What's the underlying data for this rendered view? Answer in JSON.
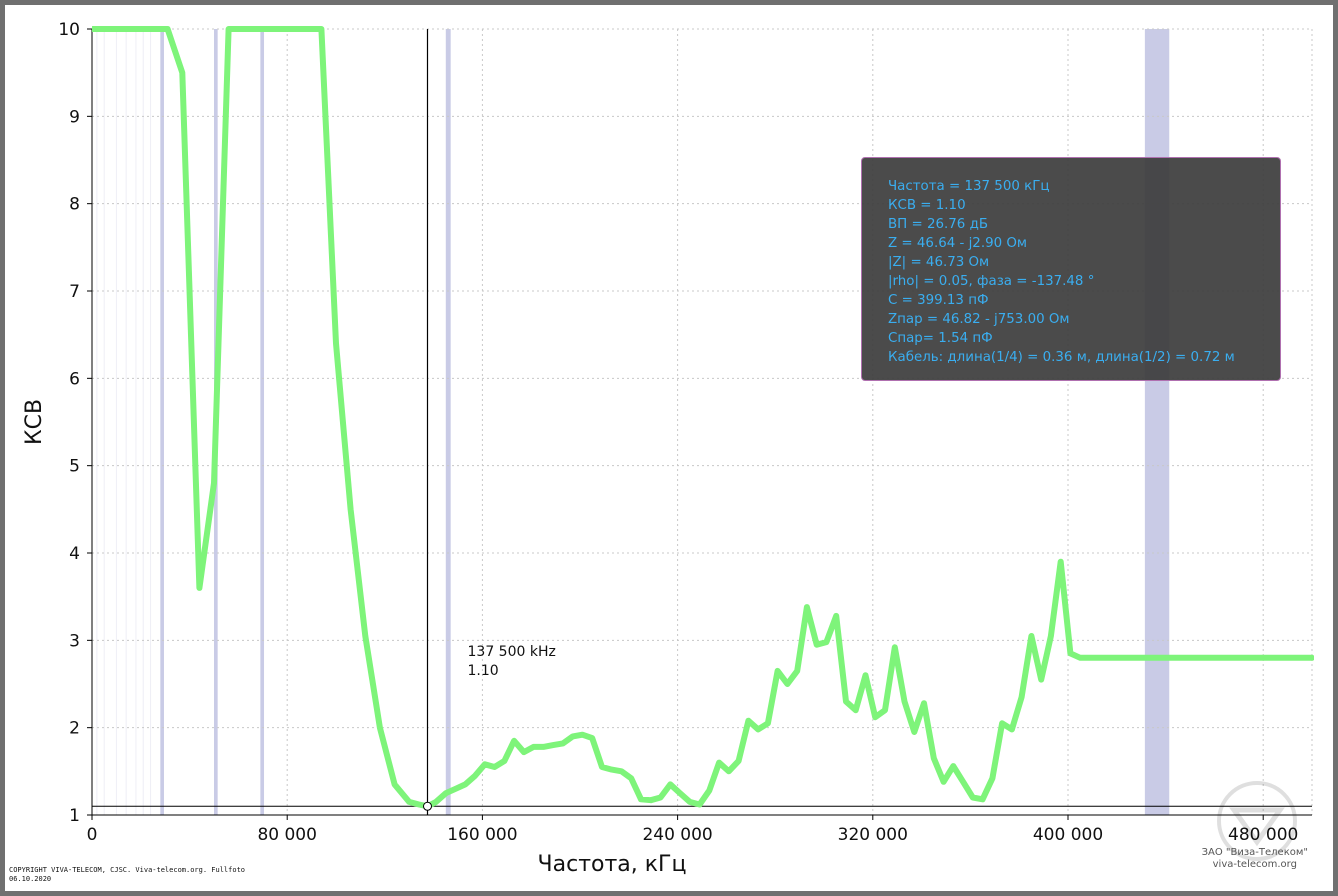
{
  "chart_data": {
    "type": "line",
    "xlabel": "Частота, кГц",
    "ylabel": "КСВ",
    "xlim": [
      0,
      500000
    ],
    "ylim": [
      1,
      10
    ],
    "x_ticks": [
      0,
      80000,
      160000,
      240000,
      320000,
      400000,
      480000
    ],
    "x_tick_labels": [
      "0",
      "80 000",
      "160 000",
      "240 000",
      "320 000",
      "400 000",
      "480 000"
    ],
    "y_ticks": [
      1,
      2,
      3,
      4,
      5,
      6,
      7,
      8,
      9,
      10
    ],
    "y_tick_labels": [
      "1",
      "2",
      "3",
      "4",
      "5",
      "6",
      "7",
      "8",
      "9",
      "10"
    ],
    "grid": true,
    "colors": {
      "series": "#7ef47a",
      "band": "#c9cbe6",
      "cursor": "#000000"
    },
    "bands": [
      {
        "x0": 28000,
        "x1": 29500
      },
      {
        "x0": 50000,
        "x1": 51500
      },
      {
        "x0": 69000,
        "x1": 70500
      },
      {
        "x0": 145000,
        "x1": 147000
      },
      {
        "x0": 431500,
        "x1": 441500
      }
    ],
    "minor_lines": [
      2000,
      5000,
      10000,
      14000,
      18000,
      21000,
      24000
    ],
    "series": [
      {
        "x": [
          0,
          31000,
          37000,
          44000,
          50000,
          56000,
          94000,
          100000,
          106000,
          112000,
          118000,
          124000,
          130000,
          134000,
          137500,
          141000,
          145000,
          149000,
          153000,
          157000,
          161000,
          165000,
          169000,
          173000,
          177000,
          181000,
          185000,
          189000,
          193000,
          197000,
          201000,
          205000,
          209000,
          213000,
          217000,
          221000,
          225000,
          229000,
          233000,
          237000,
          241000,
          245000,
          249000,
          253000,
          257000,
          261000,
          265000,
          269000,
          273000,
          277000,
          281000,
          285000,
          289000,
          293000,
          297000,
          301000,
          305000,
          309000,
          313000,
          317000,
          321000,
          325000,
          329000,
          333000,
          337000,
          341000,
          345000,
          349000,
          353000,
          357000,
          361000,
          365000,
          369000,
          373000,
          377000,
          381000,
          385000,
          389000,
          393000,
          397000,
          401000,
          405000,
          409000,
          413000,
          417000,
          421000,
          425000,
          429000,
          433000,
          437000,
          441000,
          445000,
          449000,
          453000,
          457000,
          461000,
          465000,
          469000,
          473000,
          477000,
          481000,
          485000,
          489000,
          493000,
          497000,
          500000
        ],
        "values": [
          10,
          10,
          9.5,
          3.6,
          4.8,
          10,
          10,
          6.4,
          4.5,
          3.05,
          2.0,
          1.35,
          1.15,
          1.12,
          1.1,
          1.15,
          1.25,
          1.3,
          1.35,
          1.45,
          1.58,
          1.55,
          1.62,
          1.85,
          1.72,
          1.78,
          1.78,
          1.8,
          1.82,
          1.9,
          1.92,
          1.88,
          1.55,
          1.52,
          1.5,
          1.42,
          1.18,
          1.17,
          1.2,
          1.35,
          1.25,
          1.15,
          1.12,
          1.28,
          1.6,
          1.5,
          1.62,
          2.08,
          1.98,
          2.05,
          2.65,
          2.5,
          2.65,
          3.38,
          2.95,
          2.98,
          3.28,
          2.3,
          2.2,
          2.6,
          2.12,
          2.2,
          2.92,
          2.3,
          1.95,
          2.28,
          1.65,
          1.38,
          1.56,
          1.38,
          1.2,
          1.18,
          1.42,
          2.05,
          1.98,
          2.35,
          3.05,
          2.55,
          3.05,
          3.9,
          2.85,
          2.8,
          2.8,
          2.8,
          2.8,
          2.8,
          2.8,
          2.8,
          2.8,
          2.8,
          2.8,
          2.8,
          2.8,
          2.8,
          2.8,
          2.8,
          2.8,
          2.8,
          2.8,
          2.8,
          2.8,
          2.8,
          2.8,
          2.8,
          2.8,
          2.8
        ]
      }
    ],
    "cursor": {
      "x": 137500,
      "y": 1.1,
      "label_freq": "137 500 kHz",
      "label_value": "1.10"
    }
  },
  "info_box": {
    "lines": [
      "Частота = 137 500 кГц",
      "КСВ = 1.10",
      "ВП = 26.76 дБ",
      "Z = 46.64 - j2.90 Ом",
      "|Z| = 46.73 Ом",
      "|rho| = 0.05, фаза = -137.48 °",
      "C = 399.13 пФ",
      "Zпар = 46.82 - j753.00 Ом",
      "Cпар= 1.54 пФ",
      "Кабель: длина(1/4) = 0.36 м, длина(1/2) = 0.72 м"
    ]
  },
  "footer": {
    "copyright_line1": "COPYRIGHT VIVA-TELECOM, CJSC. Viva-telecom.org. Fullfoto",
    "copyright_line2": "06.10.2020",
    "company_line1": "ЗАО \"Виза-Телеком\"",
    "company_line2": "viva-telecom.org"
  }
}
